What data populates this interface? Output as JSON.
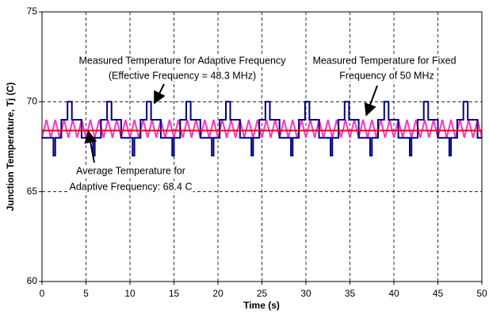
{
  "chart_data": {
    "type": "line",
    "xlabel": "Time (s)",
    "ylabel": "Junction Temperature, Tj (C)",
    "xlim": [
      0,
      50
    ],
    "xticks": [
      0,
      5,
      10,
      15,
      20,
      25,
      30,
      35,
      40,
      45,
      50
    ],
    "ylim": [
      60,
      75
    ],
    "yticks": [
      60,
      65,
      70,
      75
    ],
    "grid": true,
    "annotations": [
      "Measured Temperature for Adaptive Frequency",
      "(Effective Frequency = 48.3 MHz)",
      "Measured Temperature for Fixed",
      "Frequency of 50 MHz",
      "Average Temperature for",
      "Adaptive Frequency: 68.4 C"
    ],
    "series": [
      {
        "color": "#ff33cc",
        "x": [
          0,
          0.5,
          1,
          1.5,
          2,
          2.5,
          3,
          3.5,
          4,
          4.5,
          5,
          5.5,
          6,
          6.5,
          7,
          7.5,
          8,
          8.5,
          9,
          9.5,
          10,
          10.5,
          11,
          11.5,
          12,
          12.5,
          13,
          13.5,
          14,
          14.5,
          15,
          15.5,
          16,
          16.5,
          17,
          17.5,
          18,
          18.5,
          19,
          19.5,
          20,
          20.5,
          21,
          21.5,
          22,
          22.5,
          23,
          23.5,
          24,
          24.5,
          25,
          25.5,
          26,
          26.5,
          27,
          27.5,
          28,
          28.5,
          29,
          29.5,
          30,
          30.5,
          31,
          31.5,
          32,
          32.5,
          33,
          33.5,
          34,
          34.5,
          35,
          35.5,
          36,
          36.5,
          37,
          37.5,
          38,
          38.5,
          39,
          39.5,
          40,
          40.5,
          41,
          41.5,
          42,
          42.5,
          43,
          43.5,
          44,
          44.5,
          45,
          45.5,
          46,
          46.5,
          47,
          47.5,
          48,
          48.5,
          49,
          49.5,
          50
        ],
        "values": [
          68,
          69,
          68,
          69,
          68,
          69,
          68,
          69,
          68,
          69,
          68,
          69,
          68,
          69,
          68,
          69,
          68,
          69,
          68,
          69,
          68,
          69,
          68,
          69,
          68,
          69,
          68,
          69,
          68,
          69,
          68,
          69,
          68,
          69,
          68,
          69,
          68,
          69,
          68,
          69,
          68,
          69,
          68,
          69,
          68,
          69,
          68,
          69,
          68,
          69,
          68,
          69,
          68,
          69,
          68,
          69,
          68,
          69,
          68,
          69,
          68,
          69,
          68,
          69,
          68,
          69,
          68,
          69,
          68,
          69,
          68,
          69,
          68,
          69,
          68,
          69,
          68,
          69,
          68,
          69,
          68,
          69,
          68,
          69,
          68,
          69,
          68,
          69,
          68,
          69,
          68,
          69,
          68,
          69,
          68,
          69,
          68,
          69,
          68,
          69,
          68
        ]
      },
      {
        "color": "#000080",
        "x": [
          0,
          1.3,
          1.3,
          1.5,
          1.5,
          2.2,
          2.2,
          2.9,
          2.9,
          3.4,
          3.4,
          4.5,
          4.5,
          5.8,
          5.8,
          6,
          6,
          6.7,
          6.7,
          7.4,
          7.4,
          7.9,
          7.9,
          9,
          9,
          10.3,
          10.3,
          10.5,
          10.5,
          11.2,
          11.2,
          11.9,
          11.9,
          12.4,
          12.4,
          13.5,
          13.5,
          14.8,
          14.8,
          15,
          15,
          15.7,
          15.7,
          16.4,
          16.4,
          16.9,
          16.9,
          18,
          18,
          19.3,
          19.3,
          19.5,
          19.5,
          20.2,
          20.2,
          20.9,
          20.9,
          21.4,
          21.4,
          22.5,
          22.5,
          23.8,
          23.8,
          24,
          24,
          24.7,
          24.7,
          25.4,
          25.4,
          25.9,
          25.9,
          27,
          27,
          28.3,
          28.3,
          28.5,
          28.5,
          29.2,
          29.2,
          29.9,
          29.9,
          30.4,
          30.4,
          31.5,
          31.5,
          32.8,
          32.8,
          33,
          33,
          33.7,
          33.7,
          34.4,
          34.4,
          34.9,
          34.9,
          36,
          36,
          37.3,
          37.3,
          37.5,
          37.5,
          38.2,
          38.2,
          38.9,
          38.9,
          39.4,
          39.4,
          40.5,
          40.5,
          41.8,
          41.8,
          42,
          42,
          42.7,
          42.7,
          43.4,
          43.4,
          43.9,
          43.9,
          45,
          45,
          46.3,
          46.3,
          46.5,
          46.5,
          47.2,
          47.2,
          47.9,
          47.9,
          48.4,
          48.4,
          49.5,
          49.5,
          50
        ],
        "values": [
          68,
          68,
          67,
          67,
          68,
          68,
          69,
          69,
          70,
          70,
          69,
          69,
          68,
          68,
          67,
          67,
          68,
          68,
          69,
          69,
          70,
          70,
          69,
          69,
          68,
          68,
          67,
          67,
          68,
          68,
          69,
          69,
          70,
          70,
          69,
          69,
          68,
          68,
          67,
          67,
          68,
          68,
          69,
          69,
          70,
          70,
          69,
          69,
          68,
          68,
          67,
          67,
          68,
          68,
          69,
          69,
          70,
          70,
          69,
          69,
          68,
          68,
          67,
          67,
          68,
          68,
          69,
          69,
          70,
          70,
          69,
          69,
          68,
          68,
          67,
          67,
          68,
          68,
          69,
          69,
          70,
          70,
          69,
          69,
          68,
          68,
          67,
          67,
          68,
          68,
          69,
          69,
          70,
          70,
          69,
          69,
          68,
          68,
          67,
          67,
          68,
          68,
          69,
          69,
          70,
          70,
          69,
          69,
          68,
          68,
          67,
          67,
          68,
          68,
          69,
          69,
          70,
          70,
          69,
          69,
          68,
          68,
          67,
          67,
          68,
          68,
          69,
          69,
          70,
          70,
          69,
          69,
          68,
          68
        ]
      },
      {
        "color": "#ff0000",
        "x": [
          0,
          50
        ],
        "values": [
          68.4,
          68.4
        ]
      }
    ]
  }
}
